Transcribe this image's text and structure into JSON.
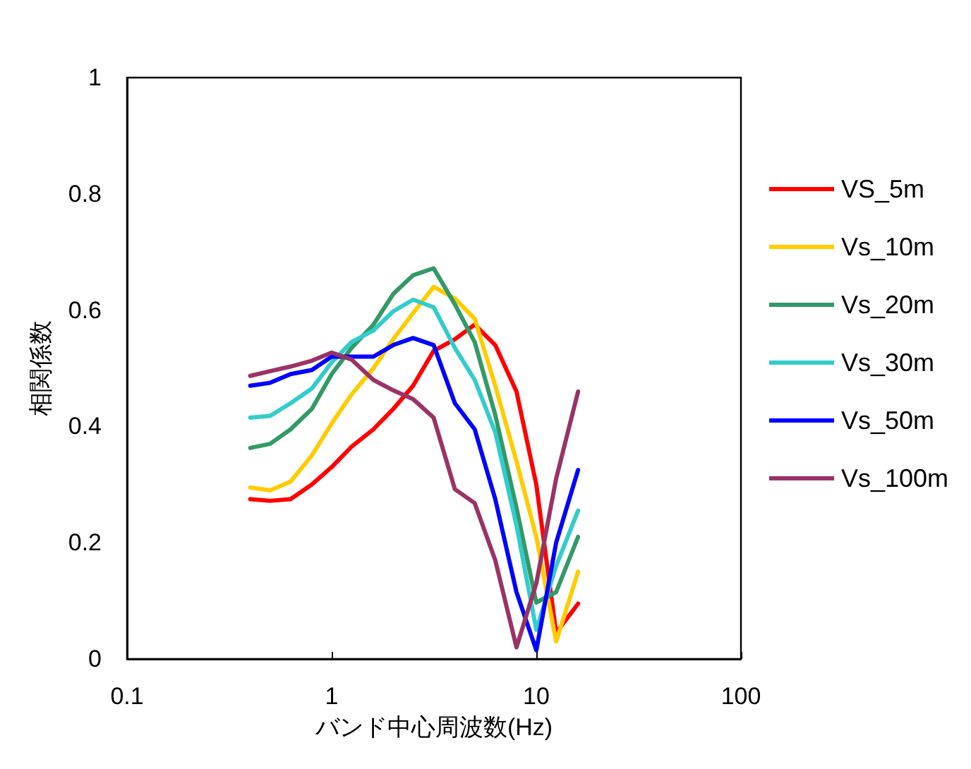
{
  "chart_data": {
    "type": "line",
    "xlabel": "バンド中心周波数(Hz)",
    "ylabel": "相関係数",
    "x": [
      0.4,
      0.5,
      0.63,
      0.8,
      1,
      1.25,
      1.6,
      2,
      2.5,
      3.15,
      4,
      5,
      6.3,
      8,
      10,
      12.5,
      16
    ],
    "series": [
      {
        "name": "VS_5m",
        "color": "#ff0000",
        "values": [
          0.275,
          0.272,
          0.275,
          0.3,
          0.33,
          0.365,
          0.395,
          0.43,
          0.47,
          0.53,
          0.55,
          0.575,
          0.54,
          0.46,
          0.3,
          0.045,
          0.095
        ]
      },
      {
        "name": "Vs_10m",
        "color": "#ffcc00",
        "values": [
          0.295,
          0.29,
          0.305,
          0.35,
          0.405,
          0.455,
          0.5,
          0.55,
          0.595,
          0.64,
          0.62,
          0.585,
          0.47,
          0.34,
          0.21,
          0.03,
          0.15
        ]
      },
      {
        "name": "Vs_20m",
        "color": "#339966",
        "values": [
          0.363,
          0.37,
          0.395,
          0.43,
          0.49,
          0.535,
          0.575,
          0.628,
          0.66,
          0.672,
          0.61,
          0.545,
          0.42,
          0.26,
          0.097,
          0.115,
          0.21
        ]
      },
      {
        "name": "Vs_30m",
        "color": "#33cccc",
        "values": [
          0.415,
          0.418,
          0.44,
          0.465,
          0.51,
          0.545,
          0.565,
          0.598,
          0.618,
          0.605,
          0.535,
          0.48,
          0.39,
          0.23,
          0.05,
          0.16,
          0.255
        ]
      },
      {
        "name": "Vs_50m",
        "color": "#0000ff",
        "values": [
          0.47,
          0.475,
          0.49,
          0.497,
          0.52,
          0.52,
          0.52,
          0.54,
          0.552,
          0.54,
          0.44,
          0.395,
          0.275,
          0.115,
          0.015,
          0.2,
          0.325
        ]
      },
      {
        "name": "Vs_100m",
        "color": "#993366",
        "values": [
          0.487,
          0.495,
          0.503,
          0.513,
          0.527,
          0.515,
          0.48,
          0.462,
          0.447,
          0.415,
          0.292,
          0.268,
          0.17,
          0.02,
          0.13,
          0.31,
          0.46
        ]
      }
    ],
    "log": "x",
    "xlim": [
      0.1,
      100
    ],
    "xticks": [
      0.1,
      1,
      10,
      100
    ],
    "ylim": [
      0,
      1
    ],
    "yticks": [
      0,
      0.2,
      0.4,
      0.6,
      0.8,
      1
    ],
    "grid": false,
    "legend": "right",
    "marker": "none",
    "line_style": "solid"
  }
}
